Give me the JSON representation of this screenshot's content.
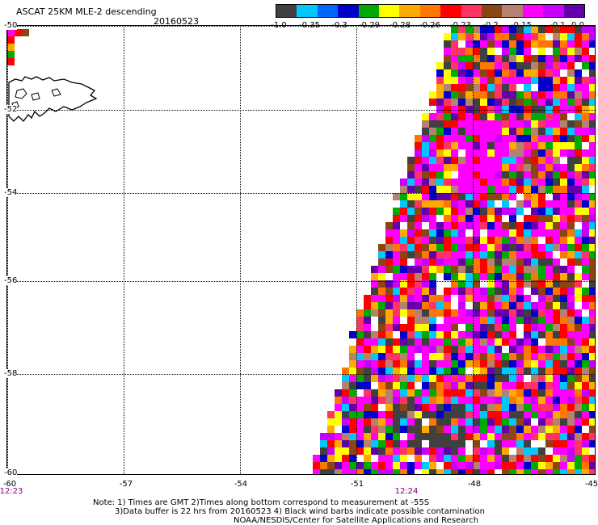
{
  "header": {
    "title": "ASCAT 25KM MLE-2 descending",
    "date": "20160523"
  },
  "colorbar": {
    "colors": [
      "#404040",
      "#00c8ff",
      "#0064ff",
      "#0000c8",
      "#00aa00",
      "#ffff00",
      "#ffaa00",
      "#ff7700",
      "#ff0000",
      "#ff3366",
      "#8b4513",
      "#b4826e",
      "#ff00ff",
      "#c800ff",
      "#6400aa"
    ],
    "labels": [
      "-1.0",
      "-0.35",
      "-0.3",
      "-0.29",
      "-0.28",
      "-0.26",
      "-0.23",
      "-0.2",
      "-0.15",
      "-0.1",
      "0.0"
    ]
  },
  "axes": {
    "y_labels": [
      "-50",
      "-52",
      "-54",
      "-56",
      "-58",
      "-60"
    ],
    "x_labels": [
      "-60",
      "-57",
      "-54",
      "-51",
      "-48",
      "-45"
    ],
    "time_labels": [
      "12:23",
      "12:24"
    ]
  },
  "map": {
    "coastline": "Falkland Islands",
    "swath_palette": [
      "#ff00ff",
      "#ff00ff",
      "#ff00ff",
      "#ff0000",
      "#ff0000",
      "#ff3366",
      "#ffaa00",
      "#ff7700",
      "#ffff00",
      "#ffffff",
      "#8b4513",
      "#00aa00",
      "#0000c8",
      "#00c8ff",
      "#404040",
      "#c800ff",
      "#6400aa",
      "#b4826e"
    ]
  },
  "notes": {
    "line1": "Note: 1) Times are GMT 2)Times along bottom correspond to measurement at -55S",
    "line2": "3)Data buffer is 22 hrs from 20160523 4) Black wind barbs indicate possible contamination",
    "line3": "NOAA/NESDIS/Center for Satellite Applications and Research"
  }
}
